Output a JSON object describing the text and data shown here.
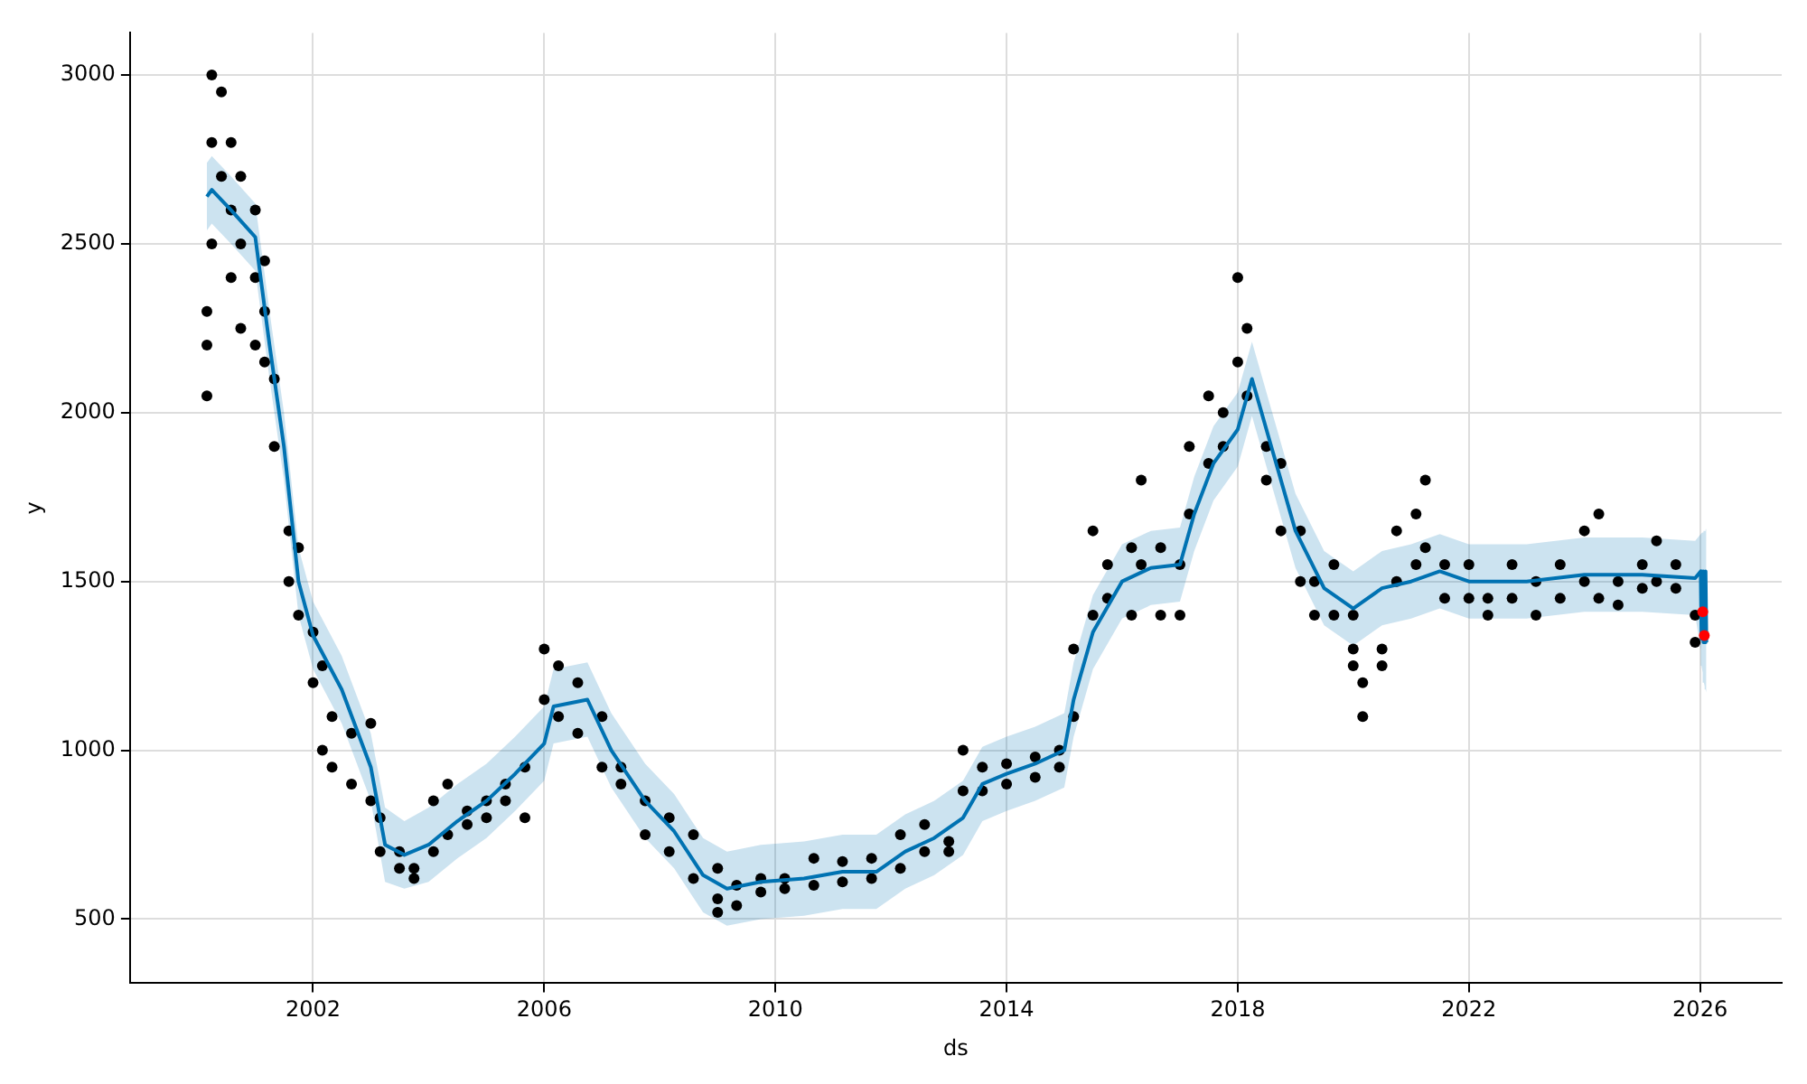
{
  "chart_data": {
    "type": "scatter",
    "xlabel": "ds",
    "ylabel": "y",
    "xlim": [
      "1998-11",
      "2027-06"
    ],
    "xticks": [
      "2002",
      "2006",
      "2010",
      "2014",
      "2018",
      "2022",
      "2026"
    ],
    "ylim": [
      310,
      3125
    ],
    "yticks": [
      500,
      1000,
      1500,
      2000,
      2500,
      3000
    ],
    "grid": true,
    "legend": false,
    "series": [
      {
        "marker": "circle",
        "color": "#000000",
        "x": [
          "2000-03",
          "2000-03",
          "2000-03",
          "2000-04",
          "2000-04",
          "2000-04",
          "2000-06",
          "2000-06",
          "2000-08",
          "2000-08",
          "2000-08",
          "2000-10",
          "2000-10",
          "2000-10",
          "2001-01",
          "2001-01",
          "2001-01",
          "2001-03",
          "2001-03",
          "2001-03",
          "2001-05",
          "2001-05",
          "2001-08",
          "2001-08",
          "2001-10",
          "2001-10",
          "2002-01",
          "2002-01",
          "2002-03",
          "2002-03",
          "2002-05",
          "2002-05",
          "2002-09",
          "2002-09",
          "2003-01",
          "2003-01",
          "2003-03",
          "2003-03",
          "2003-07",
          "2003-07",
          "2003-10",
          "2003-10",
          "2004-02",
          "2004-02",
          "2004-05",
          "2004-05",
          "2004-09",
          "2004-09",
          "2005-01",
          "2005-01",
          "2005-05",
          "2005-05",
          "2005-09",
          "2005-09",
          "2006-01",
          "2006-01",
          "2006-04",
          "2006-04",
          "2006-08",
          "2006-08",
          "2007-01",
          "2007-01",
          "2007-05",
          "2007-05",
          "2007-10",
          "2007-10",
          "2008-03",
          "2008-03",
          "2008-08",
          "2008-08",
          "2009-01",
          "2009-01",
          "2009-01",
          "2009-05",
          "2009-05",
          "2009-10",
          "2009-10",
          "2010-03",
          "2010-03",
          "2010-09",
          "2010-09",
          "2011-03",
          "2011-03",
          "2011-09",
          "2011-09",
          "2012-03",
          "2012-03",
          "2012-08",
          "2012-08",
          "2013-01",
          "2013-01",
          "2013-04",
          "2013-04",
          "2013-08",
          "2013-08",
          "2014-01",
          "2014-01",
          "2014-07",
          "2014-07",
          "2014-12",
          "2014-12",
          "2015-03",
          "2015-03",
          "2015-07",
          "2015-07",
          "2015-10",
          "2015-10",
          "2016-03",
          "2016-03",
          "2016-05",
          "2016-05",
          "2016-09",
          "2016-09",
          "2017-01",
          "2017-01",
          "2017-03",
          "2017-03",
          "2017-07",
          "2017-07",
          "2017-10",
          "2017-10",
          "2018-01",
          "2018-01",
          "2018-03",
          "2018-03",
          "2018-07",
          "2018-07",
          "2018-10",
          "2018-10",
          "2019-02",
          "2019-02",
          "2019-05",
          "2019-05",
          "2019-09",
          "2019-09",
          "2020-01",
          "2020-01",
          "2020-01",
          "2020-03",
          "2020-03",
          "2020-07",
          "2020-07",
          "2020-10",
          "2020-10",
          "2021-02",
          "2021-02",
          "2021-04",
          "2021-04",
          "2021-08",
          "2021-08",
          "2022-01",
          "2022-01",
          "2022-05",
          "2022-05",
          "2022-10",
          "2022-10",
          "2023-03",
          "2023-03",
          "2023-08",
          "2023-08",
          "2024-01",
          "2024-01",
          "2024-04",
          "2024-04",
          "2024-08",
          "2024-08",
          "2025-01",
          "2025-01",
          "2025-04",
          "2025-04",
          "2025-08",
          "2025-08",
          "2025-12",
          "2025-12"
        ],
        "values": [
          2050,
          2200,
          2300,
          2500,
          2800,
          3000,
          2950,
          2700,
          2600,
          2400,
          2800,
          2250,
          2500,
          2700,
          2400,
          2600,
          2200,
          2450,
          2300,
          2150,
          1900,
          2100,
          1650,
          1500,
          1600,
          1400,
          1350,
          1200,
          1250,
          1000,
          1100,
          950,
          1050,
          900,
          1080,
          850,
          700,
          800,
          700,
          650,
          650,
          620,
          850,
          700,
          900,
          750,
          780,
          820,
          850,
          800,
          900,
          850,
          950,
          800,
          1300,
          1150,
          1250,
          1100,
          1200,
          1050,
          1100,
          950,
          950,
          900,
          850,
          750,
          800,
          700,
          750,
          620,
          560,
          650,
          520,
          600,
          540,
          620,
          580,
          620,
          590,
          680,
          600,
          670,
          610,
          680,
          620,
          750,
          650,
          780,
          700,
          730,
          700,
          1000,
          880,
          950,
          880,
          960,
          900,
          980,
          920,
          1000,
          950,
          1300,
          1100,
          1650,
          1400,
          1550,
          1450,
          1600,
          1400,
          1800,
          1550,
          1600,
          1400,
          1550,
          1400,
          1900,
          1700,
          2050,
          1850,
          2000,
          1900,
          2400,
          2150,
          2250,
          2050,
          1900,
          1800,
          1850,
          1650,
          1650,
          1500,
          1500,
          1400,
          1550,
          1400,
          1400,
          1300,
          1250,
          1100,
          1200,
          1300,
          1250,
          1650,
          1500,
          1700,
          1550,
          1800,
          1600,
          1550,
          1450,
          1550,
          1450,
          1450,
          1400,
          1550,
          1450,
          1500,
          1400,
          1550,
          1450,
          1650,
          1500,
          1700,
          1450,
          1500,
          1430,
          1550,
          1480,
          1620,
          1500,
          1550,
          1480,
          1400,
          1320
        ]
      },
      {
        "type": "line",
        "marker": "none",
        "color": "#0072b2",
        "x": [
          "2000-03",
          "2000-04",
          "2000-08",
          "2001-01",
          "2001-04",
          "2001-07",
          "2001-10",
          "2002-01",
          "2002-07",
          "2003-01",
          "2003-04",
          "2003-08",
          "2004-01",
          "2004-07",
          "2005-01",
          "2005-07",
          "2006-01",
          "2006-03",
          "2006-10",
          "2007-03",
          "2007-10",
          "2008-04",
          "2008-10",
          "2009-03",
          "2009-10",
          "2010-07",
          "2011-03",
          "2011-10",
          "2012-04",
          "2012-10",
          "2013-04",
          "2013-08",
          "2014-01",
          "2014-07",
          "2015-01",
          "2015-03",
          "2015-07",
          "2016-01",
          "2016-07",
          "2017-01",
          "2017-04",
          "2017-08",
          "2018-01",
          "2018-04",
          "2018-08",
          "2019-01",
          "2019-07",
          "2020-01",
          "2020-07",
          "2021-01",
          "2021-07",
          "2022-01",
          "2023-01",
          "2024-01",
          "2025-01",
          "2025-12",
          "2026-01-05",
          "2026-01-10",
          "2026-01-15",
          "2026-01-20",
          "2026-01-25",
          "2026-01-30",
          "2026-02-05",
          "2026-02-10"
        ],
        "values": [
          2640,
          2660,
          2600,
          2520,
          2200,
          1900,
          1500,
          1340,
          1180,
          950,
          720,
          690,
          720,
          790,
          850,
          930,
          1020,
          1130,
          1150,
          1000,
          850,
          760,
          630,
          590,
          610,
          620,
          640,
          640,
          700,
          740,
          800,
          900,
          930,
          960,
          1000,
          1150,
          1350,
          1500,
          1540,
          1550,
          1700,
          1850,
          1950,
          2100,
          1900,
          1650,
          1480,
          1420,
          1480,
          1500,
          1530,
          1500,
          1500,
          1520,
          1520,
          1510,
          1530,
          1330,
          1530,
          1320,
          1530,
          1320,
          1530,
          1320
        ],
        "lower": [
          2540,
          2560,
          2500,
          2420,
          2100,
          1800,
          1400,
          1240,
          1080,
          850,
          610,
          590,
          610,
          680,
          740,
          820,
          910,
          1020,
          1040,
          890,
          740,
          650,
          520,
          480,
          500,
          510,
          530,
          530,
          590,
          630,
          690,
          790,
          820,
          850,
          890,
          1040,
          1240,
          1390,
          1430,
          1440,
          1590,
          1740,
          1840,
          1990,
          1790,
          1540,
          1370,
          1310,
          1370,
          1390,
          1420,
          1390,
          1390,
          1410,
          1410,
          1400,
          1300,
          1250,
          1230,
          1210,
          1200,
          1190,
          1180,
          1170
        ],
        "upper": [
          2740,
          2760,
          2700,
          2620,
          2300,
          2000,
          1600,
          1440,
          1280,
          1050,
          830,
          790,
          830,
          900,
          960,
          1040,
          1130,
          1240,
          1260,
          1110,
          960,
          870,
          740,
          700,
          720,
          730,
          750,
          750,
          810,
          850,
          910,
          1010,
          1040,
          1070,
          1110,
          1260,
          1460,
          1610,
          1650,
          1660,
          1810,
          1960,
          2060,
          2210,
          2010,
          1760,
          1590,
          1530,
          1590,
          1610,
          1640,
          1610,
          1610,
          1630,
          1630,
          1620,
          1640,
          1640,
          1645,
          1650,
          1650,
          1650,
          1655,
          1655
        ]
      },
      {
        "marker": "circle",
        "color": "#ff0000",
        "x": [
          "2026-01-18",
          "2026-01-28"
        ],
        "values": [
          1410,
          1340
        ]
      }
    ]
  }
}
